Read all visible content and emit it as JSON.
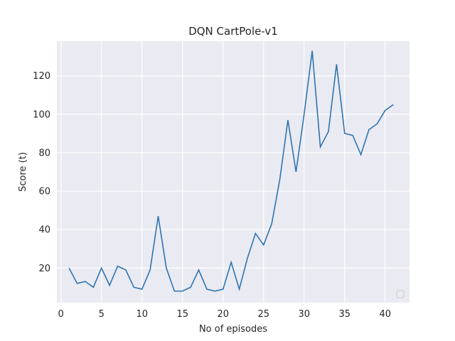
{
  "chart_data": {
    "type": "line",
    "title": "DQN CartPole-v1",
    "xlabel": "No of episodes",
    "ylabel": "Score (t)",
    "xlim": [
      -0.5,
      43.0
    ],
    "ylim": [
      2.0,
      138.0
    ],
    "xticks": [
      0,
      5,
      10,
      15,
      20,
      25,
      30,
      35,
      40
    ],
    "yticks": [
      20,
      40,
      60,
      80,
      100,
      120
    ],
    "grid": true,
    "legend": "bottom-right (empty)",
    "colors": {
      "line": "#2e75b0",
      "plot_bg": "#eaeaf2",
      "grid": "#ffffff"
    },
    "series": [
      {
        "x": [
          1,
          2,
          3,
          4,
          5,
          6,
          7,
          8,
          9,
          10,
          11,
          12,
          13,
          14,
          15,
          16,
          17,
          18,
          19,
          20,
          21,
          22,
          23,
          24,
          25,
          26,
          27,
          28,
          29,
          30,
          31,
          32,
          33,
          34,
          35,
          36,
          37,
          38,
          39,
          40,
          41
        ],
        "values": [
          20,
          12,
          13,
          10,
          20,
          11,
          21,
          19,
          10,
          9,
          19,
          47,
          20,
          8,
          8,
          10,
          19,
          9,
          8,
          9,
          23,
          9,
          25,
          38,
          32,
          43,
          66,
          97,
          70,
          100,
          133,
          83,
          91,
          126,
          90,
          89,
          79,
          92,
          95,
          102,
          105
        ]
      }
    ]
  }
}
